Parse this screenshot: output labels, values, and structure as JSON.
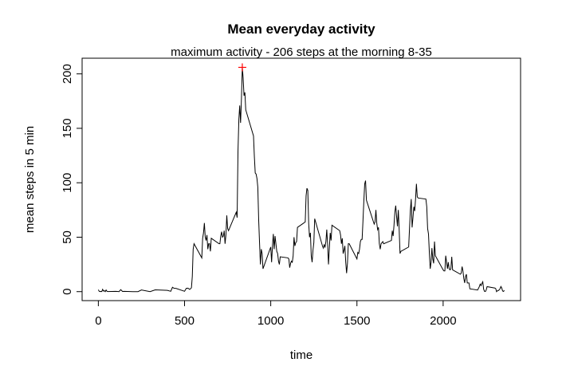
{
  "chart_data": {
    "type": "line",
    "title": "Mean everyday activity",
    "subtitle": "maximum activity - 206 steps at the morning 8-35",
    "x_label": "time",
    "y_label": "mean steps in 5 min",
    "xlim": [
      -94.2,
      2449.2
    ],
    "ylim": [
      -8.25,
      214.4
    ],
    "xticks": [
      0,
      500,
      1000,
      1500,
      2000
    ],
    "yticks": [
      0,
      50,
      100,
      150,
      200
    ],
    "x": [
      0,
      5,
      10,
      15,
      20,
      25,
      30,
      35,
      40,
      45,
      50,
      55,
      100,
      110,
      120,
      130,
      140,
      150,
      200,
      230,
      250,
      300,
      330,
      400,
      420,
      430,
      440,
      450,
      500,
      510,
      520,
      530,
      540,
      545,
      550,
      555,
      600,
      605,
      610,
      615,
      620,
      625,
      630,
      635,
      640,
      645,
      650,
      655,
      700,
      705,
      710,
      715,
      720,
      725,
      730,
      735,
      740,
      745,
      750,
      755,
      800,
      805,
      810,
      815,
      820,
      825,
      830,
      835,
      840,
      845,
      850,
      855,
      900,
      905,
      910,
      915,
      920,
      925,
      930,
      935,
      940,
      945,
      950,
      955,
      1000,
      1005,
      1010,
      1015,
      1020,
      1025,
      1030,
      1035,
      1040,
      1045,
      1050,
      1055,
      1100,
      1105,
      1110,
      1115,
      1120,
      1125,
      1130,
      1135,
      1140,
      1145,
      1150,
      1155,
      1200,
      1205,
      1210,
      1215,
      1220,
      1225,
      1230,
      1235,
      1240,
      1245,
      1250,
      1255,
      1300,
      1305,
      1310,
      1315,
      1320,
      1325,
      1330,
      1335,
      1340,
      1345,
      1350,
      1355,
      1400,
      1405,
      1410,
      1415,
      1420,
      1425,
      1430,
      1435,
      1440,
      1445,
      1450,
      1455,
      1500,
      1505,
      1510,
      1515,
      1520,
      1525,
      1530,
      1535,
      1540,
      1545,
      1550,
      1555,
      1600,
      1605,
      1610,
      1615,
      1620,
      1625,
      1630,
      1635,
      1640,
      1645,
      1650,
      1655,
      1700,
      1705,
      1710,
      1715,
      1720,
      1725,
      1730,
      1735,
      1740,
      1745,
      1750,
      1755,
      1800,
      1805,
      1810,
      1815,
      1820,
      1825,
      1830,
      1835,
      1840,
      1845,
      1850,
      1855,
      1900,
      1905,
      1910,
      1915,
      1920,
      1925,
      1930,
      1935,
      1940,
      1945,
      1950,
      1955,
      2000,
      2005,
      2010,
      2015,
      2020,
      2025,
      2030,
      2035,
      2040,
      2045,
      2050,
      2055,
      2100,
      2105,
      2110,
      2115,
      2120,
      2125,
      2130,
      2135,
      2140,
      2145,
      2150,
      2155,
      2200,
      2205,
      2210,
      2215,
      2220,
      2225,
      2230,
      2235,
      2240,
      2245,
      2250,
      2255,
      2300,
      2305,
      2310,
      2315,
      2320,
      2325,
      2330,
      2335,
      2340,
      2345,
      2350,
      2355
    ],
    "series": [
      {
        "name": "steps",
        "color": "#000000",
        "values": [
          1.7,
          0.3,
          0.1,
          0.2,
          0.1,
          2.1,
          0.5,
          0.9,
          0,
          1.5,
          0.3,
          0.1,
          0.3,
          0.2,
          0,
          1.8,
          0.2,
          0.3,
          0,
          0,
          1.5,
          0,
          1.6,
          1.2,
          0.3,
          4,
          3,
          3,
          0.3,
          3,
          3.2,
          2,
          3.5,
          14,
          39,
          44,
          31,
          49,
          54,
          63,
          50,
          47,
          52,
          39,
          44,
          44,
          37,
          49,
          44,
          44,
          51,
          55,
          50,
          51,
          56,
          44,
          52,
          70,
          58,
          56,
          73,
          68,
          129,
          158,
          171,
          155,
          177,
          206,
          196,
          180,
          183,
          167,
          143,
          124,
          109,
          108,
          104,
          96,
          66,
          45,
          25,
          39,
          35,
          21,
          41,
          27,
          42,
          53,
          39,
          51,
          44,
          37,
          35,
          28,
          25,
          32,
          31,
          30,
          22,
          26,
          28,
          27,
          33,
          50,
          42,
          45,
          46,
          59,
          64,
          88,
          95,
          93,
          63,
          50,
          54,
          33,
          27,
          38,
          45,
          67,
          42,
          40,
          43,
          41,
          46,
          57,
          43,
          25,
          40,
          54,
          47,
          61,
          56,
          52,
          44,
          49,
          35,
          38,
          42,
          27,
          17,
          26,
          44,
          44,
          30,
          36,
          35,
          39,
          46,
          48,
          48,
          65,
          83,
          99,
          102,
          84,
          62,
          64,
          75,
          63,
          57,
          59,
          44,
          39,
          44,
          45,
          46,
          44,
          47,
          56,
          51,
          61,
          73,
          79,
          69,
          60,
          75,
          57,
          35,
          37,
          41,
          58,
          75,
          85,
          59,
          68,
          78,
          74,
          85,
          99,
          87,
          86,
          85,
          78,
          58,
          53,
          36,
          21,
          27,
          40,
          30,
          26,
          46,
          33,
          20,
          19,
          19,
          33,
          27,
          21,
          27,
          21,
          20,
          21,
          32,
          20,
          16,
          17,
          23,
          19,
          12,
          8,
          14,
          16,
          8,
          8,
          8,
          2.6,
          1.5,
          3,
          4.6,
          6.9,
          5.6,
          7.5,
          9,
          2.2,
          0.3,
          0.1,
          1.6,
          4.6,
          3.3,
          2.8,
          0,
          0.8,
          1,
          1.6,
          2.6,
          4.7,
          3.3,
          0.6,
          0.2,
          1.1
        ]
      }
    ],
    "highlight": {
      "x": 835,
      "y": 206,
      "color": "#ff0000"
    }
  }
}
